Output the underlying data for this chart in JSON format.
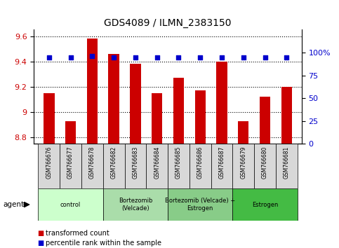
{
  "title": "GDS4089 / ILMN_2383150",
  "samples": [
    "GSM766676",
    "GSM766677",
    "GSM766678",
    "GSM766682",
    "GSM766683",
    "GSM766684",
    "GSM766685",
    "GSM766686",
    "GSM766687",
    "GSM766679",
    "GSM766680",
    "GSM766681"
  ],
  "bar_values": [
    9.15,
    8.93,
    9.58,
    9.46,
    9.38,
    9.15,
    9.27,
    9.17,
    9.4,
    8.93,
    9.12,
    9.2
  ],
  "percentile_values": [
    95,
    95,
    96,
    95,
    95,
    95,
    95,
    95,
    95,
    95,
    95,
    95
  ],
  "bar_color": "#cc0000",
  "percentile_color": "#0000cc",
  "ylim_left": [
    8.75,
    9.65
  ],
  "ylim_right": [
    0,
    125
  ],
  "yticks_left": [
    8.8,
    9.0,
    9.2,
    9.4,
    9.6
  ],
  "ytick_labels_left": [
    "8.8",
    "9",
    "9.2",
    "9.4",
    "9.6"
  ],
  "yticks_right": [
    0,
    25,
    50,
    75,
    100
  ],
  "ytick_labels_right": [
    "0",
    "25",
    "50",
    "75",
    "100%"
  ],
  "groups": [
    {
      "label": "control",
      "start": 0,
      "end": 3,
      "color": "#ccffcc"
    },
    {
      "label": "Bortezomib\n(Velcade)",
      "start": 3,
      "end": 6,
      "color": "#aaddaa"
    },
    {
      "label": "Bortezomib (Velcade) +\nEstrogen",
      "start": 6,
      "end": 9,
      "color": "#88cc88"
    },
    {
      "label": "Estrogen",
      "start": 9,
      "end": 12,
      "color": "#44bb44"
    }
  ],
  "bar_baseline": 8.75,
  "agent_label": "agent",
  "legend_items": [
    {
      "label": "transformed count",
      "color": "#cc0000"
    },
    {
      "label": "percentile rank within the sample",
      "color": "#0000cc"
    }
  ],
  "sample_box_color": "#d8d8d8",
  "title_fontsize": 10,
  "tick_fontsize": 8,
  "label_fontsize": 7
}
